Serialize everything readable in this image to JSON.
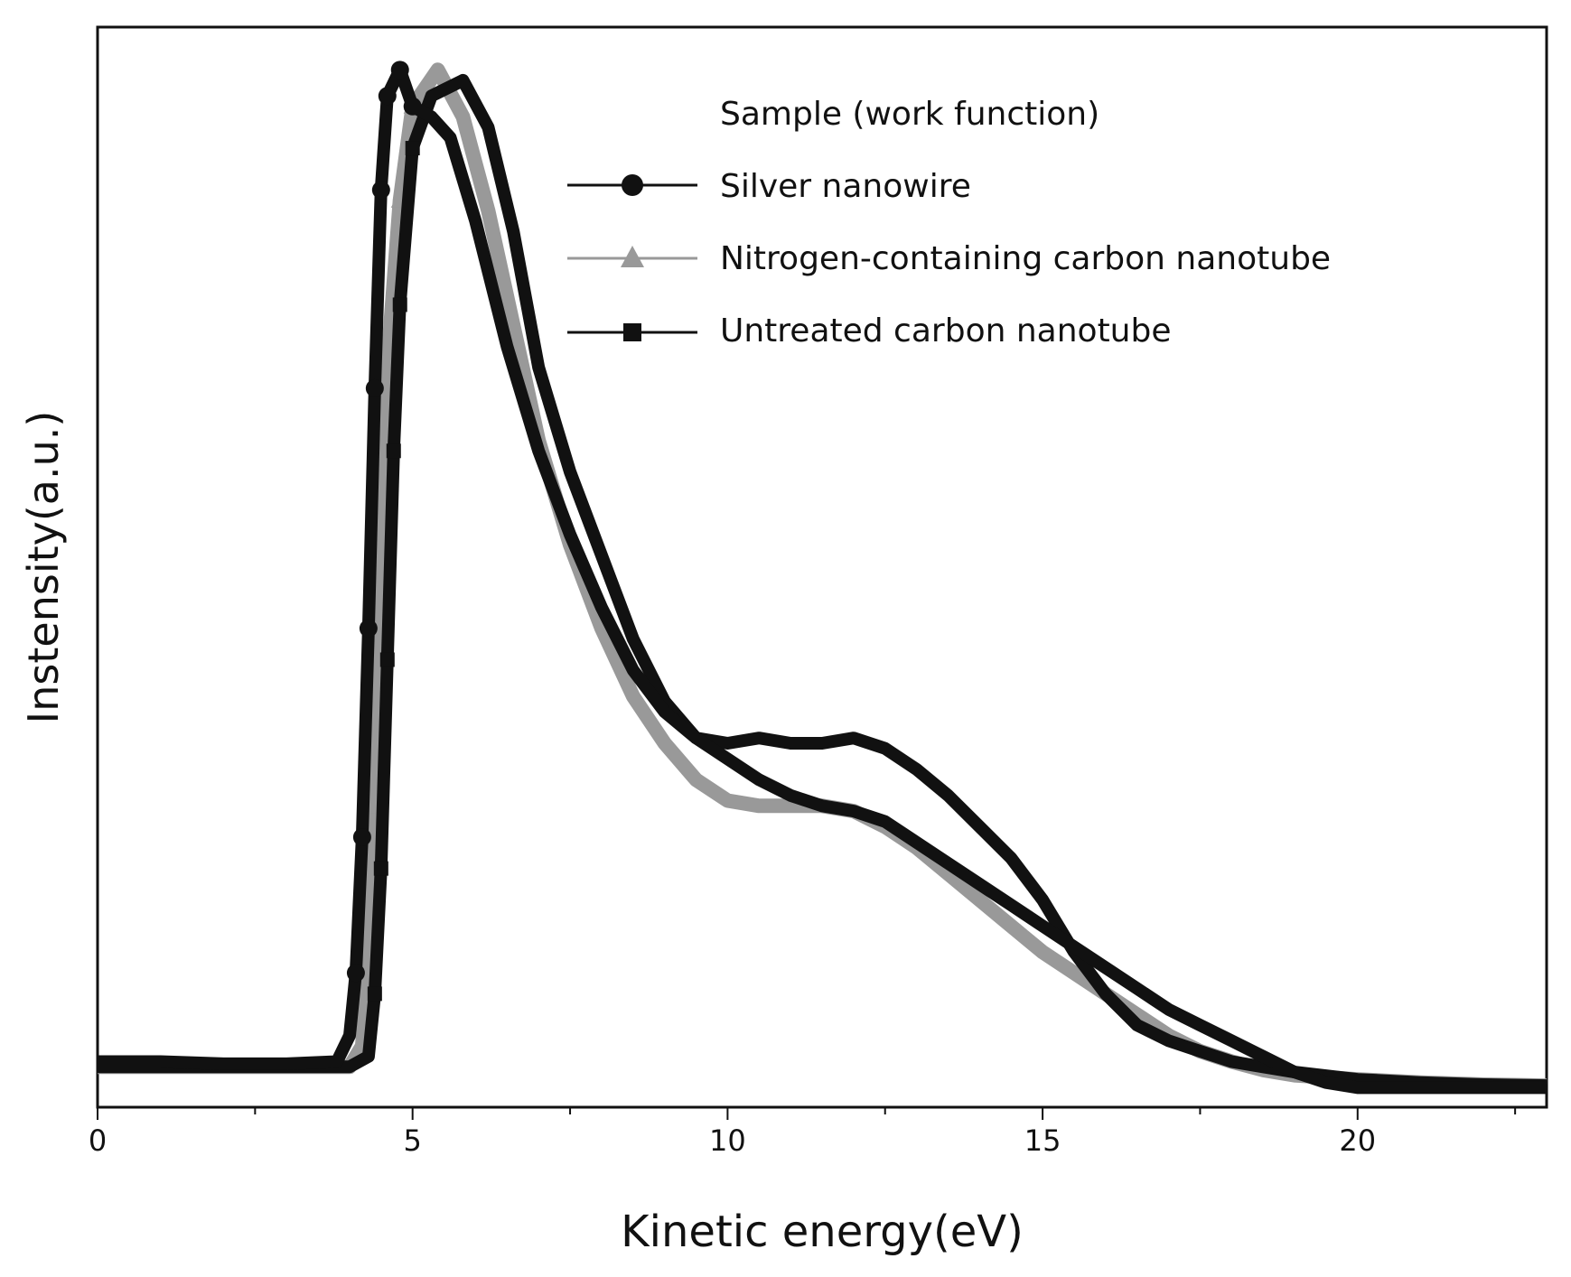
{
  "chart_data": {
    "type": "line",
    "title": "",
    "xlabel": "Kinetic energy(eV)",
    "ylabel": "Instensity(a.u.)",
    "xlim": [
      0,
      23
    ],
    "ylim": [
      0,
      1
    ],
    "x_ticks": [
      "0",
      "5",
      "10",
      "15",
      "20"
    ],
    "y_ticks_labeled": false,
    "grid": false,
    "legend": {
      "title": "Sample (work function)",
      "placement": "top-right"
    },
    "series": [
      {
        "name": "Silver nanowire",
        "marker": "circle",
        "color": "#111111",
        "points": [
          [
            0,
            0.035
          ],
          [
            1,
            0.035
          ],
          [
            2,
            0.033
          ],
          [
            3,
            0.033
          ],
          [
            3.8,
            0.035
          ],
          [
            4.0,
            0.06
          ],
          [
            4.1,
            0.12
          ],
          [
            4.2,
            0.25
          ],
          [
            4.3,
            0.45
          ],
          [
            4.4,
            0.68
          ],
          [
            4.5,
            0.87
          ],
          [
            4.6,
            0.96
          ],
          [
            4.8,
            0.985
          ],
          [
            5.0,
            0.95
          ],
          [
            5.3,
            0.94
          ],
          [
            5.6,
            0.92
          ],
          [
            6.0,
            0.84
          ],
          [
            6.5,
            0.72
          ],
          [
            7.0,
            0.62
          ],
          [
            7.5,
            0.54
          ],
          [
            8.0,
            0.47
          ],
          [
            8.5,
            0.41
          ],
          [
            9.0,
            0.37
          ],
          [
            9.5,
            0.345
          ],
          [
            10.0,
            0.325
          ],
          [
            10.5,
            0.305
          ],
          [
            11.0,
            0.29
          ],
          [
            11.5,
            0.28
          ],
          [
            12.0,
            0.275
          ],
          [
            12.5,
            0.265
          ],
          [
            13.0,
            0.245
          ],
          [
            13.5,
            0.225
          ],
          [
            14.0,
            0.205
          ],
          [
            14.5,
            0.185
          ],
          [
            15.0,
            0.165
          ],
          [
            15.5,
            0.145
          ],
          [
            16.0,
            0.125
          ],
          [
            16.5,
            0.105
          ],
          [
            17.0,
            0.085
          ],
          [
            17.5,
            0.07
          ],
          [
            18.0,
            0.055
          ],
          [
            18.5,
            0.04
          ],
          [
            19.0,
            0.025
          ],
          [
            19.5,
            0.015
          ],
          [
            20.0,
            0.01
          ],
          [
            21.0,
            0.01
          ],
          [
            22.0,
            0.01
          ],
          [
            23.0,
            0.01
          ]
        ]
      },
      {
        "name": "Nitrogen-containing carbon nanotube",
        "marker": "triangle",
        "color": "#999999",
        "points": [
          [
            0,
            0.03
          ],
          [
            1,
            0.03
          ],
          [
            2,
            0.03
          ],
          [
            3,
            0.03
          ],
          [
            4.0,
            0.03
          ],
          [
            4.2,
            0.05
          ],
          [
            4.3,
            0.12
          ],
          [
            4.4,
            0.28
          ],
          [
            4.5,
            0.5
          ],
          [
            4.6,
            0.7
          ],
          [
            4.8,
            0.86
          ],
          [
            5.0,
            0.95
          ],
          [
            5.4,
            0.985
          ],
          [
            5.8,
            0.94
          ],
          [
            6.2,
            0.85
          ],
          [
            6.6,
            0.74
          ],
          [
            7.0,
            0.63
          ],
          [
            7.5,
            0.53
          ],
          [
            8.0,
            0.45
          ],
          [
            8.5,
            0.385
          ],
          [
            9.0,
            0.34
          ],
          [
            9.5,
            0.305
          ],
          [
            10.0,
            0.285
          ],
          [
            10.5,
            0.28
          ],
          [
            11.0,
            0.28
          ],
          [
            11.5,
            0.28
          ],
          [
            12.0,
            0.275
          ],
          [
            12.5,
            0.26
          ],
          [
            13.0,
            0.24
          ],
          [
            13.5,
            0.215
          ],
          [
            14.0,
            0.19
          ],
          [
            14.5,
            0.165
          ],
          [
            15.0,
            0.14
          ],
          [
            15.5,
            0.12
          ],
          [
            16.0,
            0.1
          ],
          [
            16.5,
            0.08
          ],
          [
            17.0,
            0.06
          ],
          [
            17.5,
            0.045
          ],
          [
            18.0,
            0.035
          ],
          [
            18.5,
            0.027
          ],
          [
            19.0,
            0.022
          ],
          [
            20.0,
            0.018
          ],
          [
            21.0,
            0.015
          ],
          [
            22.0,
            0.013
          ],
          [
            23.0,
            0.012
          ]
        ]
      },
      {
        "name": "Untreated carbon nanotube",
        "marker": "square",
        "color": "#111111",
        "points": [
          [
            0,
            0.03
          ],
          [
            1,
            0.03
          ],
          [
            2,
            0.03
          ],
          [
            3,
            0.03
          ],
          [
            4.0,
            0.03
          ],
          [
            4.3,
            0.04
          ],
          [
            4.4,
            0.1
          ],
          [
            4.5,
            0.22
          ],
          [
            4.6,
            0.42
          ],
          [
            4.7,
            0.62
          ],
          [
            4.8,
            0.76
          ],
          [
            5.0,
            0.91
          ],
          [
            5.3,
            0.96
          ],
          [
            5.8,
            0.975
          ],
          [
            6.2,
            0.93
          ],
          [
            6.6,
            0.83
          ],
          [
            7.0,
            0.7
          ],
          [
            7.5,
            0.6
          ],
          [
            8.0,
            0.52
          ],
          [
            8.5,
            0.44
          ],
          [
            9.0,
            0.38
          ],
          [
            9.5,
            0.345
          ],
          [
            10.0,
            0.34
          ],
          [
            10.5,
            0.345
          ],
          [
            11.0,
            0.34
          ],
          [
            11.5,
            0.34
          ],
          [
            12.0,
            0.345
          ],
          [
            12.5,
            0.335
          ],
          [
            13.0,
            0.315
          ],
          [
            13.5,
            0.29
          ],
          [
            14.0,
            0.26
          ],
          [
            14.5,
            0.23
          ],
          [
            15.0,
            0.19
          ],
          [
            15.5,
            0.14
          ],
          [
            16.0,
            0.1
          ],
          [
            16.5,
            0.07
          ],
          [
            17.0,
            0.055
          ],
          [
            17.5,
            0.045
          ],
          [
            18.0,
            0.035
          ],
          [
            18.5,
            0.03
          ],
          [
            19.0,
            0.025
          ],
          [
            20.0,
            0.018
          ],
          [
            21.0,
            0.015
          ],
          [
            22.0,
            0.013
          ],
          [
            23.0,
            0.012
          ]
        ]
      }
    ]
  }
}
